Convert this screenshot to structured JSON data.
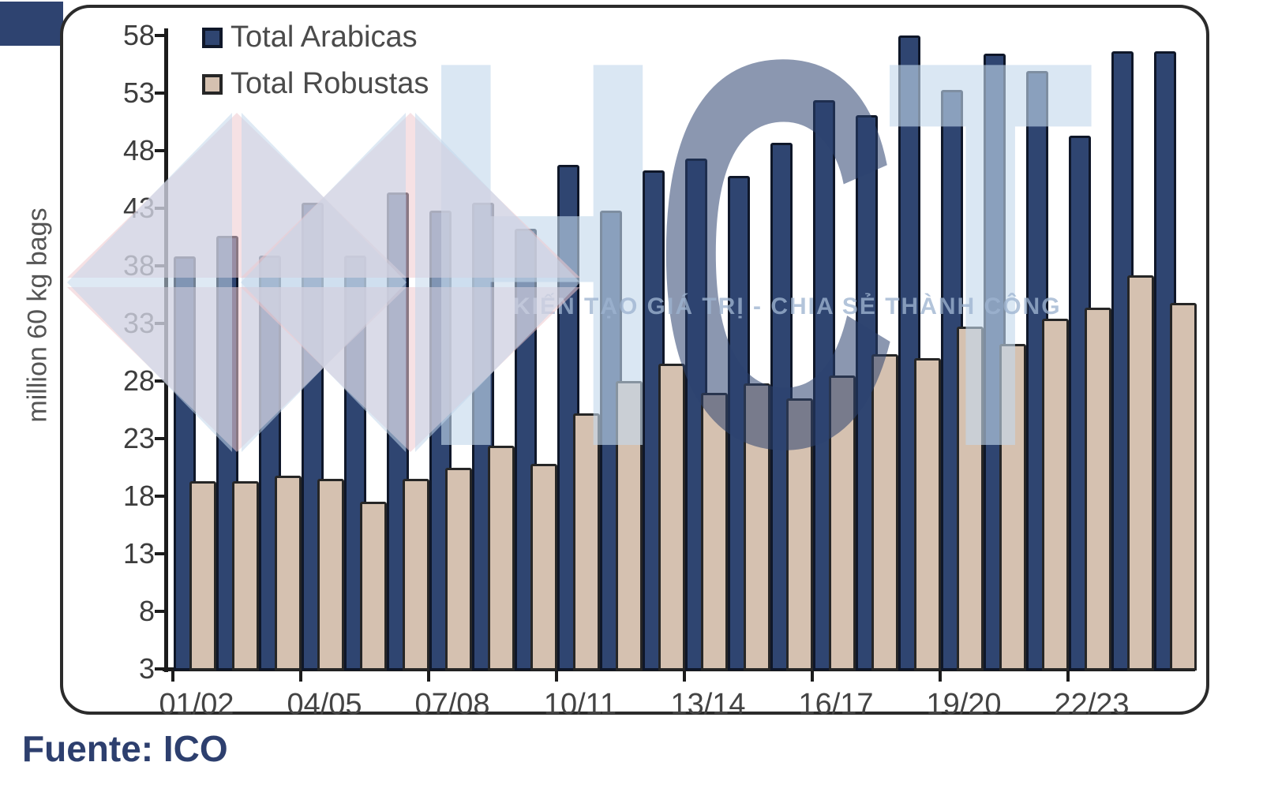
{
  "page": {
    "corner_square_color": "#2e4370",
    "panel_border_color": "#2b2b2b",
    "background": "#ffffff"
  },
  "footer": {
    "source_label": "Fuente: ICO",
    "color": "#2d3f6e"
  },
  "watermark": {
    "letters": "HCT",
    "letter_color_light": "#c4d8ec",
    "letter_color_dark": "#2c426e",
    "slogan": "KIẾN TẠO GIÁ TRỊ - CHIA SẺ THÀNH CÔNG",
    "diamond_pink": "#efc9ce",
    "diamond_blue": "#c3d7eb"
  },
  "chart_data": {
    "type": "bar",
    "title": "",
    "xlabel": "",
    "ylabel": "million 60 kg bags",
    "ylim": [
      3,
      58
    ],
    "yticks": [
      58,
      53,
      48,
      43,
      38,
      33,
      28,
      23,
      18,
      13,
      8,
      3
    ],
    "xtick_labels": [
      "01/02",
      "04/05",
      "07/08",
      "10/11",
      "13/14",
      "16/17",
      "19/20",
      "22/23"
    ],
    "grid": false,
    "legend_position": "top-left",
    "categories": [
      "01/02",
      "02/03",
      "03/04",
      "04/05",
      "05/06",
      "06/07",
      "07/08",
      "08/09",
      "09/10",
      "10/11",
      "11/12",
      "12/13",
      "13/14",
      "14/15",
      "15/16",
      "16/17",
      "17/18",
      "18/19",
      "19/20",
      "20/21",
      "21/22",
      "22/23",
      "23/24",
      "24/25"
    ],
    "series": [
      {
        "name": "Total Arabicas",
        "color": "#2f4571",
        "border_color": "#0f1729",
        "values": [
          38.8,
          40.6,
          38.9,
          43.5,
          38.9,
          44.4,
          42.8,
          43.5,
          41.2,
          46.8,
          42.8,
          46.3,
          47.3,
          45.8,
          48.7,
          52.4,
          51.1,
          58.0,
          53.3,
          56.4,
          54.9,
          49.3,
          56.6,
          56.6
        ]
      },
      {
        "name": "Total Robustas",
        "color": "#d5c1b0",
        "border_color": "#262626",
        "values": [
          19.3,
          19.3,
          19.8,
          19.5,
          17.5,
          19.5,
          20.5,
          22.4,
          20.8,
          25.2,
          28.0,
          29.5,
          27.0,
          27.8,
          26.5,
          28.5,
          30.3,
          30.0,
          32.7,
          31.2,
          33.4,
          34.4,
          37.2,
          34.8
        ]
      }
    ]
  }
}
